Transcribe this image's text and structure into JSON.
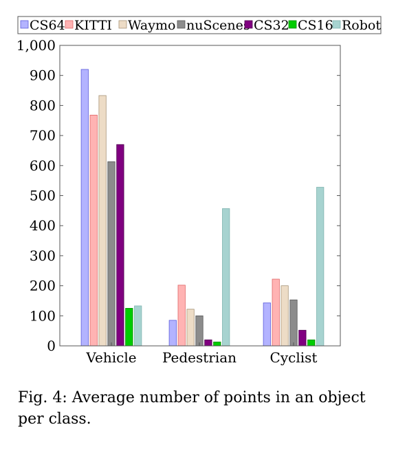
{
  "chart_data": {
    "type": "bar",
    "categories": [
      "Vehicle",
      "Pedestrian",
      "Cyclist"
    ],
    "series": [
      {
        "name": "CS64",
        "color": "#b3b3ff",
        "stroke": "#5c5cdb",
        "values": [
          920,
          85,
          143
        ]
      },
      {
        "name": "KITTI",
        "color": "#ffb3b3",
        "stroke": "#e06666",
        "values": [
          768,
          202,
          222
        ]
      },
      {
        "name": "Waymo",
        "color": "#eddcc6",
        "stroke": "#a89478",
        "values": [
          833,
          122,
          200
        ]
      },
      {
        "name": "nuScenes",
        "color": "#8c8c8c",
        "stroke": "#555555",
        "values": [
          613,
          100,
          153
        ]
      },
      {
        "name": "CS32",
        "color": "#800080",
        "stroke": "#4d004d",
        "values": [
          670,
          20,
          52
        ]
      },
      {
        "name": "CS16",
        "color": "#00cc00",
        "stroke": "#008800",
        "values": [
          125,
          13,
          20
        ]
      },
      {
        "name": "Robot",
        "color": "#a7d3d0",
        "stroke": "#7fb3b0",
        "values": [
          133,
          457,
          528
        ]
      }
    ],
    "yticks": [
      "0",
      "100",
      "200",
      "300",
      "400",
      "500",
      "600",
      "700",
      "800",
      "900",
      "1,000"
    ],
    "ylim": [
      0,
      1000
    ],
    "legend_position": "top"
  },
  "caption": "Fig. 4: Average number of points in an object per class."
}
